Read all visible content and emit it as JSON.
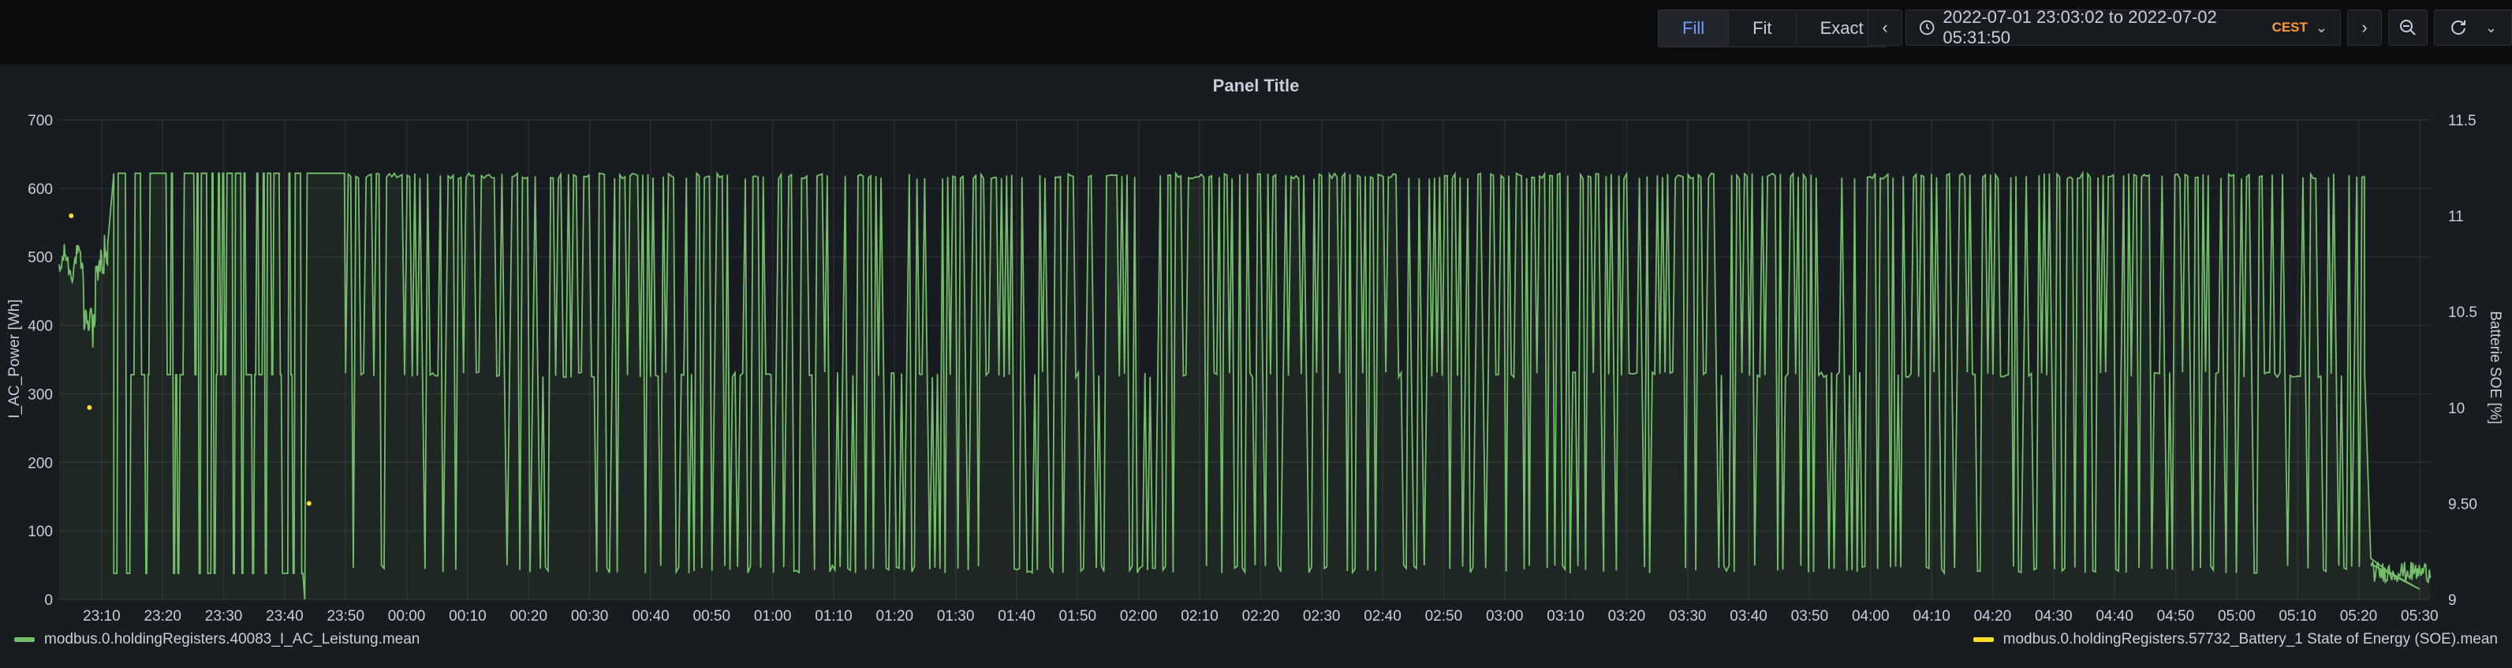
{
  "toolbar": {
    "fill_label": "Fill",
    "fit_label": "Fit",
    "exact_label": "Exact",
    "time_range": "2022-07-01 23:03:02 to 2022-07-02 05:31:50",
    "timezone": "CEST"
  },
  "panel": {
    "title": "Panel Title"
  },
  "colors": {
    "series1": "#73bf69",
    "series2": "#fade2a",
    "grid": "#2a2c31",
    "axis_text": "#ccccdc"
  },
  "chart_data": {
    "type": "line",
    "title": "Panel Title",
    "ylabel": "I_AC_Power [Wh]",
    "ylabel_right": "Batterie SOE [%]",
    "ylim": [
      0,
      700
    ],
    "ylim_right": [
      9,
      11.5
    ],
    "yticks": [
      "0",
      "100",
      "200",
      "300",
      "400",
      "500",
      "600",
      "700"
    ],
    "yticks_right": [
      "9",
      "9.50",
      "10",
      "10.5",
      "11",
      "11.5"
    ],
    "xticks": [
      "23:10",
      "23:20",
      "23:30",
      "23:40",
      "23:50",
      "00:00",
      "00:10",
      "00:20",
      "00:30",
      "00:40",
      "00:50",
      "01:00",
      "01:10",
      "01:20",
      "01:30",
      "01:40",
      "01:50",
      "02:00",
      "02:10",
      "02:20",
      "02:30",
      "02:40",
      "02:50",
      "03:00",
      "03:10",
      "03:20",
      "03:30",
      "03:40",
      "03:50",
      "04:00",
      "04:10",
      "04:20",
      "04:30",
      "04:40",
      "04:50",
      "05:00",
      "05:10",
      "05:20",
      "05:30"
    ],
    "grid": true,
    "legend_placement": "bottom",
    "series": [
      {
        "name": "modbus.0.holdingRegisters.40083_I_AC_Leistung.mean",
        "axis": "left",
        "levels": {
          "high": 622,
          "mid": 328,
          "low": 38
        },
        "points": [
          [
            "23:03",
            490
          ],
          [
            "23:05",
            500
          ],
          [
            "23:07",
            470
          ],
          [
            "23:08",
            380
          ],
          [
            "23:09",
            440
          ],
          [
            "23:11",
            520
          ],
          [
            "23:12",
            622
          ],
          [
            "23:32",
            622
          ],
          [
            "23:43",
            622
          ],
          [
            "23:47",
            622
          ],
          [
            "23:50",
            622
          ],
          [
            "05:20",
            622
          ],
          [
            "05:21",
            330
          ],
          [
            "05:22",
            60
          ],
          [
            "05:25",
            40
          ],
          [
            "05:28",
            25
          ],
          [
            "05:30",
            15
          ]
        ]
      },
      {
        "name": "modbus.0.holdingRegisters.57732_Battery_1 State of Energy (SOE).mean",
        "axis": "right",
        "points": [
          [
            "23:05",
            11.0
          ],
          [
            "23:08",
            10.0
          ],
          [
            "23:44",
            9.5
          ]
        ]
      }
    ]
  }
}
